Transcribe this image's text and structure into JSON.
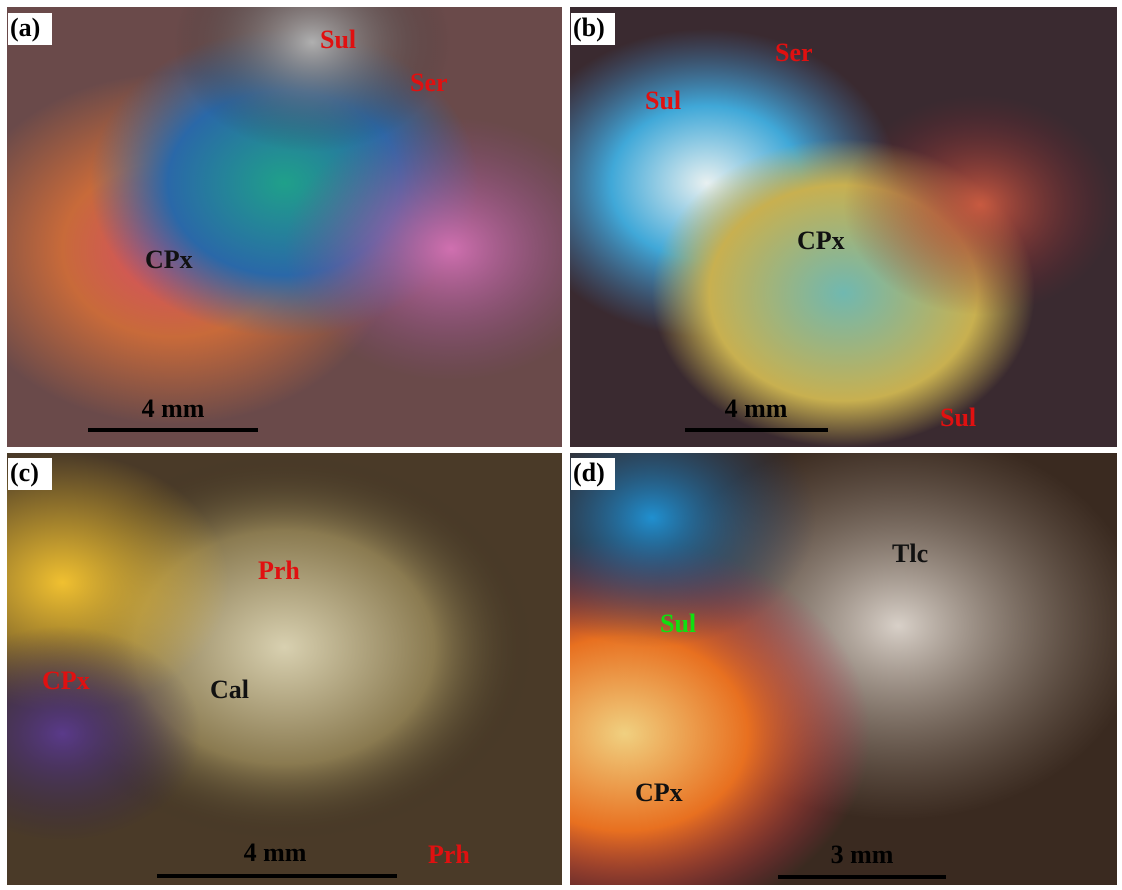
{
  "panels": [
    {
      "label": "(a)",
      "annotations": [
        "Sul",
        "Ser",
        "CPx"
      ],
      "scale_bar": "4 mm"
    },
    {
      "label": "(b)",
      "annotations": [
        "Ser",
        "Sul",
        "CPx",
        "Sul"
      ],
      "scale_bar": "4 mm"
    },
    {
      "label": "(c)",
      "annotations": [
        "Prh",
        "CPx",
        "Cal",
        "Prh"
      ],
      "scale_bar": "4 mm"
    },
    {
      "label": "(d)",
      "annotations": [
        "Tlc",
        "Sul",
        "CPx"
      ],
      "scale_bar": "3 mm"
    }
  ]
}
